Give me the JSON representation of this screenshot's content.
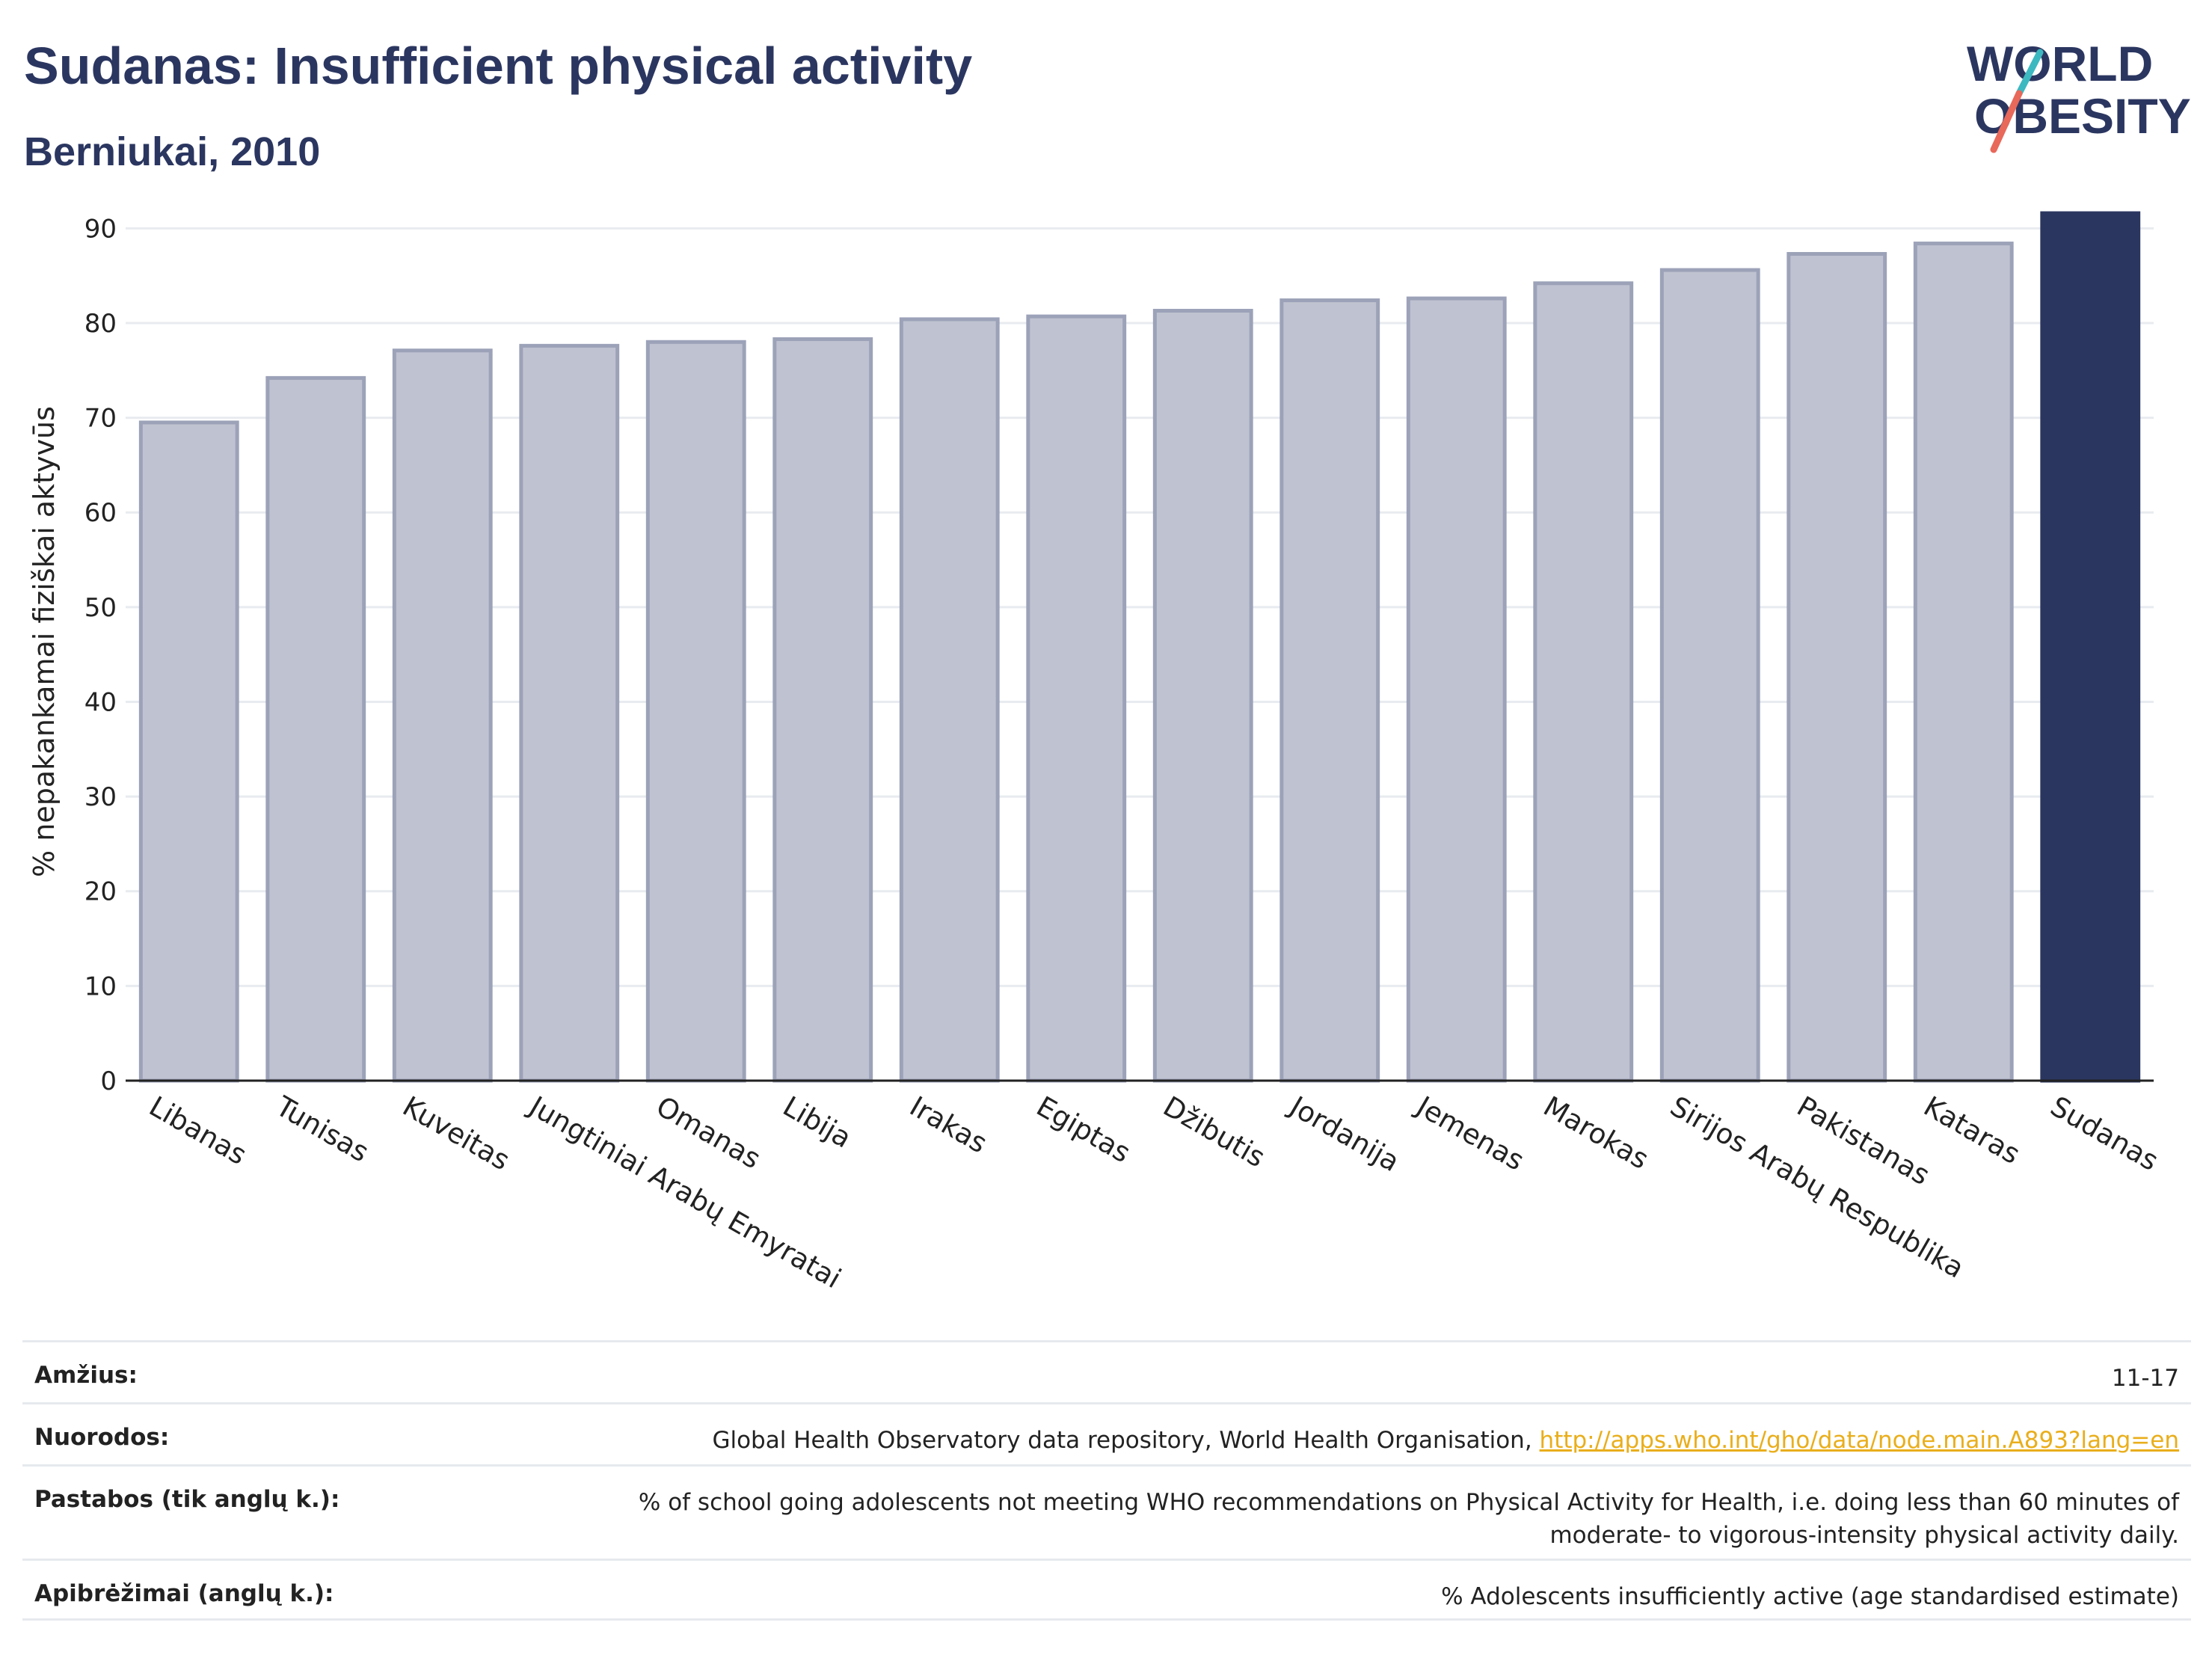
{
  "header": {
    "title": "Sudanas: Insufficient physical activity",
    "subtitle": "Berniukai, 2010"
  },
  "logo": {
    "line1": "WORLD",
    "line2": "OBESITY",
    "icon": "world-obesity-logo"
  },
  "chart_data": {
    "type": "bar",
    "title": "Sudanas: Insufficient physical activity",
    "subtitle": "Berniukai, 2010",
    "xlabel": "",
    "ylabel": "% nepakankamai fiziškai aktyvūs",
    "ylim": [
      0,
      92
    ],
    "yticks": [
      0,
      10,
      20,
      30,
      40,
      50,
      60,
      70,
      80,
      90
    ],
    "grid": true,
    "categories": [
      "Libanas",
      "Tunisas",
      "Kuveitas",
      "Jungtiniai Arabų Emyratai",
      "Omanas",
      "Libija",
      "Irakas",
      "Egiptas",
      "Džibutis",
      "Jordanija",
      "Jemenas",
      "Marokas",
      "Sirijos Arabų Respublika",
      "Pakistanas",
      "Kataras",
      "Sudanas"
    ],
    "values": [
      69.5,
      74.2,
      77.1,
      77.6,
      78.0,
      78.3,
      80.4,
      80.7,
      81.3,
      82.4,
      82.6,
      84.2,
      85.6,
      87.3,
      88.4,
      91.6
    ],
    "highlight": "Sudanas",
    "colors": {
      "bar": "#bfc2d0",
      "bar_border": "#9ca2b8",
      "highlight": "#2b3660"
    }
  },
  "info": [
    {
      "label": "Amžius:",
      "value": "11-17"
    },
    {
      "label": "Nuorodos:",
      "value": "Global Health Observatory data repository, World Health Organisation, ",
      "link": "http://apps.who.int/gho/data/node.main.A893?lang=en"
    },
    {
      "label": "Pastabos (tik anglų k.):",
      "value": "% of school going adolescents not meeting WHO recommendations on Physical Activity for Health, i.e. doing less than 60 minutes of moderate- to vigorous-intensity physical activity daily."
    },
    {
      "label": "Apibrėžimai (anglų k.):",
      "value": "% Adolescents insufficiently active (age standardised estimate)"
    }
  ]
}
